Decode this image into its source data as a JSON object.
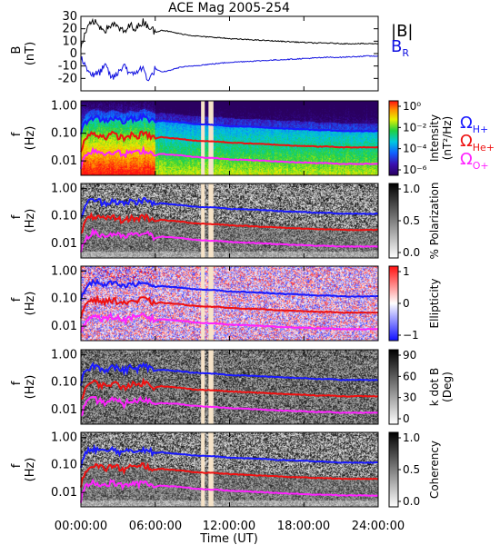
{
  "title": "ACE Mag 2005-254",
  "colors": {
    "b_total": "#000000",
    "b_r": "#1010e0",
    "h": "#1a1aff",
    "he": "#ee1111",
    "o": "#ff22ff",
    "gap": "#f6e3c8"
  },
  "x_axis": {
    "label": "Time (UT)",
    "ticks": [
      "00:00:00",
      "06:00:00",
      "12:00:00",
      "18:00:00",
      "24:00:00"
    ],
    "tick_hours": [
      0,
      6,
      12,
      18,
      24
    ],
    "range_hours": [
      0,
      24
    ]
  },
  "data_gap_hours": [
    [
      9.7,
      10.0
    ],
    [
      10.3,
      10.7
    ]
  ],
  "legend": {
    "b": "|B|",
    "br_main": "B",
    "br_sub": "R",
    "h_main": "Ω",
    "h_sub": "H+",
    "he_main": "Ω",
    "he_sub": "He+",
    "o_main": "Ω",
    "o_sub": "O+"
  },
  "chart_data": [
    {
      "type": "line",
      "panel": "B",
      "ylabel": "B",
      "yunit": "(nT)",
      "ylim": [
        -30,
        30
      ],
      "yticks": [
        "30",
        "20",
        "10",
        "0",
        "-10",
        "-20"
      ],
      "yvals": [
        30,
        20,
        10,
        0,
        -10,
        -20
      ],
      "series": [
        {
          "name": "|B|",
          "x": [
            0,
            0.5,
            1,
            1.5,
            2,
            2.5,
            3,
            3.5,
            4,
            4.5,
            5,
            5.5,
            6,
            6.5,
            7,
            8,
            9,
            10,
            11,
            12,
            13,
            14,
            15,
            16,
            17,
            18,
            19,
            20,
            21,
            22,
            23,
            24
          ],
          "values": [
            5,
            20,
            26,
            22,
            19,
            24,
            21,
            17,
            23,
            20,
            26,
            22,
            17,
            19,
            18,
            16,
            14.5,
            13.5,
            13,
            12,
            11.5,
            11,
            10.5,
            10,
            9.5,
            9,
            8.5,
            8.5,
            8,
            8,
            8,
            8
          ]
        },
        {
          "name": "B_R",
          "x": [
            0,
            0.5,
            1,
            1.5,
            2,
            2.5,
            3,
            3.5,
            4,
            4.5,
            5,
            5.5,
            6,
            6.5,
            7,
            8,
            9,
            10,
            11,
            12,
            13,
            14,
            15,
            16,
            17,
            18,
            19,
            20,
            21,
            22,
            23,
            24
          ],
          "values": [
            -3,
            -12,
            -18,
            -15,
            -10,
            -20,
            -16,
            -8,
            -18,
            -14,
            -12,
            -22,
            -12,
            -15,
            -14,
            -11,
            -10,
            -9,
            -8,
            -7,
            -6.5,
            -6,
            -5.5,
            -5,
            -4.5,
            -4,
            -3.5,
            -3,
            -3,
            -2.5,
            -2,
            -2
          ]
        }
      ]
    },
    {
      "type": "heatmap",
      "panel": "Intensity",
      "ylabel": "f",
      "yunit": "(Hz)",
      "ylim": [
        0.003,
        1.5
      ],
      "yscale": "log",
      "yticks": [
        "1.00",
        "0.10",
        "0.01"
      ],
      "colorbar_label": "Intensity",
      "colorbar_unit": "(nT²/Hz)",
      "colorbar_ticks": [
        "10⁰",
        "10⁻²",
        "10⁻⁴",
        "10⁻⁶"
      ],
      "colorbar_range": [
        -6,
        1
      ]
    },
    {
      "type": "heatmap",
      "panel": "Polarization",
      "ylabel": "f",
      "yunit": "(Hz)",
      "ylim": [
        0.003,
        1.5
      ],
      "yscale": "log",
      "yticks": [
        "1.00",
        "0.10",
        "0.01"
      ],
      "colorbar_label": "% Polarization",
      "colorbar_ticks": [
        "1.0",
        "0.5",
        "0.0"
      ],
      "colorbar_range": [
        0,
        1
      ]
    },
    {
      "type": "heatmap",
      "panel": "Ellipticity",
      "ylabel": "f",
      "yunit": "(Hz)",
      "ylim": [
        0.003,
        1.5
      ],
      "yscale": "log",
      "yticks": [
        "1.00",
        "0.10",
        "0.01"
      ],
      "colorbar_label": "Ellipticity",
      "colorbar_ticks": [
        "1",
        "0",
        "−1"
      ],
      "colorbar_range": [
        -1,
        1
      ]
    },
    {
      "type": "heatmap",
      "panel": "kdotB",
      "ylabel": "f",
      "yunit": "(Hz)",
      "ylim": [
        0.003,
        1.5
      ],
      "yscale": "log",
      "yticks": [
        "1.00",
        "0.10",
        "0.01"
      ],
      "colorbar_label": "k dot B",
      "colorbar_unit": "(Deg)",
      "colorbar_ticks": [
        "90",
        "60",
        "30",
        "0"
      ],
      "colorbar_range": [
        0,
        90
      ]
    },
    {
      "type": "heatmap",
      "panel": "Coherency",
      "ylabel": "f",
      "yunit": "(Hz)",
      "ylim": [
        0.003,
        1.5
      ],
      "yscale": "log",
      "yticks": [
        "1.00",
        "0.10",
        "0.01"
      ],
      "colorbar_label": "Coherency",
      "colorbar_ticks": [
        "1.0",
        "0.5",
        "0.0"
      ],
      "colorbar_range": [
        0,
        1
      ]
    }
  ],
  "gyrofrequency_hz": {
    "x": [
      0,
      0.5,
      1,
      1.5,
      2,
      2.5,
      3,
      3.5,
      4,
      4.5,
      5,
      5.5,
      6,
      6.5,
      7,
      8,
      9,
      10,
      11,
      12,
      13,
      14,
      15,
      16,
      17,
      18,
      19,
      20,
      21,
      22,
      23,
      24
    ],
    "H+": [
      0.08,
      0.3,
      0.4,
      0.34,
      0.29,
      0.37,
      0.32,
      0.26,
      0.35,
      0.3,
      0.4,
      0.33,
      0.26,
      0.29,
      0.27,
      0.25,
      0.22,
      0.21,
      0.2,
      0.18,
      0.175,
      0.17,
      0.16,
      0.15,
      0.145,
      0.14,
      0.13,
      0.13,
      0.12,
      0.12,
      0.12,
      0.12
    ],
    "He+": [
      0.02,
      0.075,
      0.1,
      0.085,
      0.073,
      0.093,
      0.08,
      0.065,
      0.088,
      0.075,
      0.1,
      0.083,
      0.065,
      0.073,
      0.068,
      0.063,
      0.055,
      0.052,
      0.05,
      0.046,
      0.044,
      0.042,
      0.04,
      0.038,
      0.036,
      0.035,
      0.033,
      0.033,
      0.031,
      0.031,
      0.031,
      0.031
    ],
    "O+": [
      0.005,
      0.019,
      0.025,
      0.021,
      0.018,
      0.023,
      0.02,
      0.016,
      0.022,
      0.019,
      0.025,
      0.021,
      0.016,
      0.018,
      0.017,
      0.016,
      0.014,
      0.013,
      0.0125,
      0.0115,
      0.011,
      0.0105,
      0.01,
      0.0095,
      0.009,
      0.0088,
      0.0083,
      0.0083,
      0.0078,
      0.0078,
      0.0078,
      0.0078
    ]
  }
}
